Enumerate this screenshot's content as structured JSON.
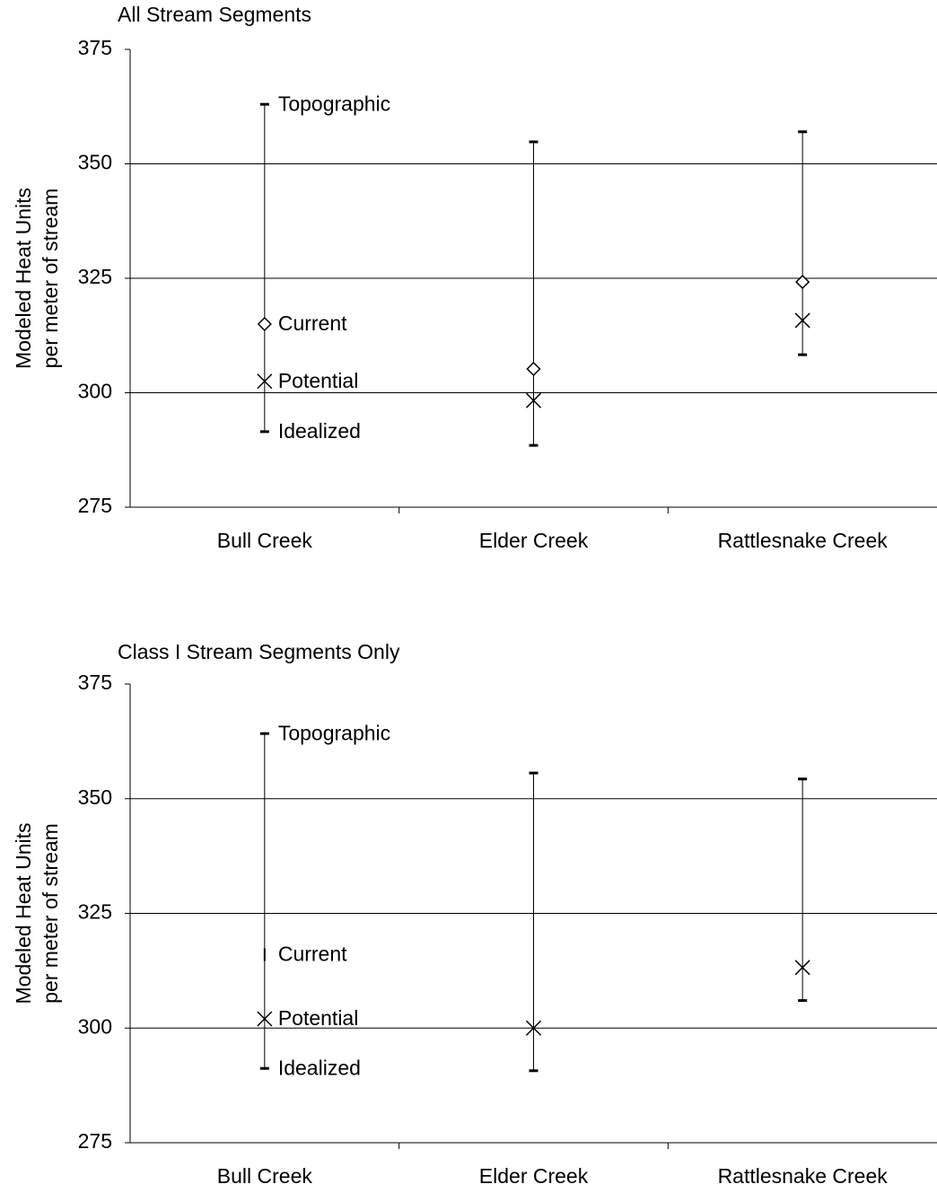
{
  "chart_data": [
    {
      "type": "range",
      "title": "All Stream Segments",
      "ylabel": [
        "Modeled Heat Units",
        "per meter of stream"
      ],
      "categories": [
        "Bull Creek",
        "Elder Creek",
        "Rattlesnake Creek"
      ],
      "series": [
        {
          "name": "Topographic",
          "color": "#000000",
          "marker": "cap",
          "values": [
            363,
            354.8,
            357
          ]
        },
        {
          "name": "Current",
          "color": "#000000",
          "marker": "diamond",
          "values": [
            315,
            305.2,
            324.2
          ]
        },
        {
          "name": "Potential",
          "color": "#000000",
          "marker": "x",
          "values": [
            302.5,
            298.3,
            315.8
          ]
        },
        {
          "name": "Idealized",
          "color": "#000000",
          "marker": "cap",
          "values": [
            291.5,
            288.5,
            308.3
          ]
        }
      ],
      "ylim": [
        275,
        375
      ],
      "yticks": [
        275,
        300,
        325,
        350,
        375
      ],
      "grid": true
    },
    {
      "type": "range",
      "title": "Class I Stream Segments Only",
      "ylabel": [
        "Modeled Heat Units",
        "per meter of stream"
      ],
      "categories": [
        "Bull Creek",
        "Elder Creek",
        "Rattlesnake Creek"
      ],
      "series": [
        {
          "name": "Topographic",
          "color": "#000000",
          "marker": "cap",
          "values": [
            364.2,
            355.6,
            354.3
          ]
        },
        {
          "name": "Current",
          "color": "#000000",
          "marker": "dash",
          "values": [
            316,
            null,
            null
          ]
        },
        {
          "name": "Potential",
          "color": "#000000",
          "marker": "x",
          "values": [
            302,
            300,
            313.2
          ]
        },
        {
          "name": "Idealized",
          "color": "#000000",
          "marker": "cap",
          "values": [
            291.2,
            290.7,
            306
          ]
        }
      ],
      "ylim": [
        275,
        375
      ],
      "yticks": [
        275,
        300,
        325,
        350,
        375
      ],
      "grid": true
    }
  ]
}
